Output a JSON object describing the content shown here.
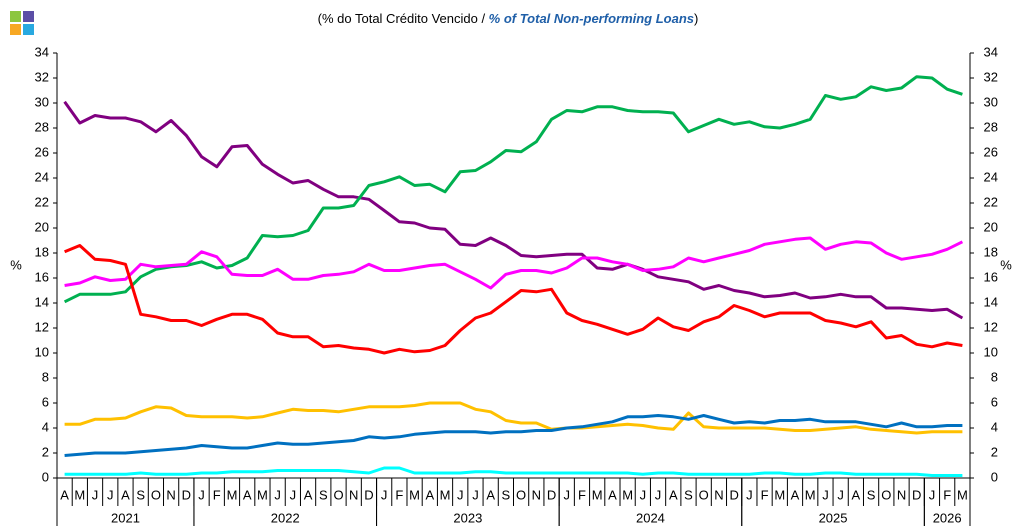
{
  "chart_data": {
    "type": "line",
    "title": [
      "(% do Total Crédito Vencido / ",
      "% of Total Non-performing Loans",
      ")"
    ],
    "ylabel": "%",
    "y2label": "%",
    "categories": [
      "A",
      "M",
      "J",
      "J",
      "A",
      "S",
      "O",
      "N",
      "D",
      "J",
      "F",
      "M",
      "A",
      "M",
      "J",
      "J",
      "A",
      "S",
      "O",
      "N",
      "D",
      "J",
      "F",
      "M",
      "A",
      "M",
      "J",
      "J",
      "A",
      "S",
      "O",
      "N",
      "D",
      "J",
      "F",
      "M",
      "A",
      "M",
      "J",
      "J",
      "A",
      "S",
      "O",
      "N",
      "D",
      "J",
      "F",
      "M",
      "A",
      "M",
      "J",
      "J",
      "A",
      "S",
      "O",
      "N",
      "D",
      "J",
      "F",
      "M"
    ],
    "year_groups": [
      {
        "label": "2021",
        "months": 9
      },
      {
        "label": "2022",
        "months": 12
      },
      {
        "label": "2023",
        "months": 12
      },
      {
        "label": "2024",
        "months": 12
      },
      {
        "label": "2025",
        "months": 12
      },
      {
        "label": "2026",
        "months": 3
      }
    ],
    "ylim": [
      0,
      34
    ],
    "yticks": [
      0,
      2,
      4,
      6,
      8,
      10,
      12,
      14,
      16,
      18,
      20,
      22,
      24,
      26,
      28,
      30,
      32,
      34
    ],
    "y2lim": [
      0,
      34
    ],
    "y2ticks": [
      0,
      2,
      4,
      6,
      8,
      10,
      12,
      14,
      16,
      18,
      20,
      22,
      24,
      26,
      28,
      30,
      32,
      34
    ],
    "series": [
      {
        "color": "#800080",
        "values": [
          30.1,
          28.4,
          29.0,
          28.8,
          28.8,
          28.5,
          27.7,
          28.6,
          27.4,
          25.7,
          24.9,
          26.5,
          26.6,
          25.1,
          24.3,
          23.6,
          23.8,
          23.1,
          22.5,
          22.5,
          22.3,
          21.4,
          20.5,
          20.4,
          20.0,
          19.9,
          18.7,
          18.6,
          19.2,
          18.6,
          17.8,
          17.7,
          17.8,
          17.9,
          17.9,
          16.8,
          16.7,
          17.1,
          16.7,
          16.1,
          15.9,
          15.7,
          15.1,
          15.4,
          15.0,
          14.8,
          14.5,
          14.6,
          14.8,
          14.4,
          14.5,
          14.7,
          14.5,
          14.5,
          13.6,
          13.6,
          13.5,
          13.4,
          13.5,
          12.8
        ]
      },
      {
        "color": "#00b050",
        "values": [
          14.1,
          14.7,
          14.7,
          14.7,
          14.9,
          16.1,
          16.7,
          16.9,
          17.0,
          17.3,
          16.8,
          17.0,
          17.6,
          19.4,
          19.3,
          19.4,
          19.8,
          21.6,
          21.6,
          21.8,
          23.4,
          23.7,
          24.1,
          23.4,
          23.5,
          22.9,
          24.5,
          24.6,
          25.3,
          26.2,
          26.1,
          26.9,
          28.7,
          29.4,
          29.3,
          29.7,
          29.7,
          29.4,
          29.3,
          29.3,
          29.2,
          27.7,
          28.2,
          28.7,
          28.3,
          28.5,
          28.1,
          28.0,
          28.3,
          28.7,
          30.6,
          30.3,
          30.5,
          31.3,
          31.0,
          31.2,
          32.1,
          32.0,
          31.1,
          30.7
        ]
      },
      {
        "color": "#ff00ff",
        "values": [
          15.4,
          15.6,
          16.1,
          15.8,
          15.9,
          17.1,
          16.9,
          17.0,
          17.1,
          18.1,
          17.7,
          16.3,
          16.2,
          16.2,
          16.7,
          15.9,
          15.9,
          16.2,
          16.3,
          16.5,
          17.1,
          16.6,
          16.6,
          16.8,
          17.0,
          17.1,
          16.5,
          15.9,
          15.2,
          16.3,
          16.6,
          16.6,
          16.4,
          16.8,
          17.6,
          17.6,
          17.3,
          17.1,
          16.6,
          16.7,
          16.9,
          17.6,
          17.3,
          17.6,
          17.9,
          18.2,
          18.7,
          18.9,
          19.1,
          19.2,
          18.3,
          18.7,
          18.9,
          18.8,
          18.0,
          17.5,
          17.7,
          17.9,
          18.3,
          18.9
        ]
      },
      {
        "color": "#ff0000",
        "values": [
          18.1,
          18.6,
          17.5,
          17.4,
          17.1,
          13.1,
          12.9,
          12.6,
          12.6,
          12.2,
          12.7,
          13.1,
          13.1,
          12.7,
          11.6,
          11.3,
          11.3,
          10.5,
          10.6,
          10.4,
          10.3,
          10.0,
          10.3,
          10.1,
          10.2,
          10.6,
          11.8,
          12.8,
          13.2,
          14.1,
          15.0,
          14.9,
          15.1,
          13.2,
          12.6,
          12.3,
          11.9,
          11.5,
          11.9,
          12.8,
          12.1,
          11.8,
          12.5,
          12.9,
          13.8,
          13.4,
          12.9,
          13.2,
          13.2,
          13.2,
          12.6,
          12.4,
          12.1,
          12.5,
          11.2,
          11.4,
          10.7,
          10.5,
          10.8,
          10.6
        ]
      },
      {
        "color": "#ffc000",
        "values": [
          4.3,
          4.3,
          4.7,
          4.7,
          4.8,
          5.3,
          5.7,
          5.6,
          5.0,
          4.9,
          4.9,
          4.9,
          4.8,
          4.9,
          5.2,
          5.5,
          5.4,
          5.4,
          5.3,
          5.5,
          5.7,
          5.7,
          5.7,
          5.8,
          6.0,
          6.0,
          6.0,
          5.5,
          5.3,
          4.6,
          4.4,
          4.4,
          3.9,
          4.0,
          4.0,
          4.1,
          4.2,
          4.3,
          4.2,
          4.0,
          3.9,
          5.2,
          4.1,
          4.0,
          4.0,
          4.0,
          4.0,
          3.9,
          3.8,
          3.8,
          3.9,
          4.0,
          4.1,
          3.9,
          3.8,
          3.7,
          3.6,
          3.7,
          3.7,
          3.7
        ]
      },
      {
        "color": "#0070c0",
        "values": [
          1.8,
          1.9,
          2.0,
          2.0,
          2.0,
          2.1,
          2.2,
          2.3,
          2.4,
          2.6,
          2.5,
          2.4,
          2.4,
          2.6,
          2.8,
          2.7,
          2.7,
          2.8,
          2.9,
          3.0,
          3.3,
          3.2,
          3.3,
          3.5,
          3.6,
          3.7,
          3.7,
          3.7,
          3.6,
          3.7,
          3.7,
          3.8,
          3.8,
          4.0,
          4.1,
          4.3,
          4.5,
          4.9,
          4.9,
          5.0,
          4.9,
          4.7,
          5.0,
          4.7,
          4.4,
          4.5,
          4.4,
          4.6,
          4.6,
          4.7,
          4.5,
          4.5,
          4.5,
          4.3,
          4.1,
          4.4,
          4.1,
          4.1,
          4.2,
          4.2
        ]
      },
      {
        "color": "#00ffff",
        "values": [
          0.3,
          0.3,
          0.3,
          0.3,
          0.3,
          0.4,
          0.3,
          0.3,
          0.3,
          0.4,
          0.4,
          0.5,
          0.5,
          0.5,
          0.6,
          0.6,
          0.6,
          0.6,
          0.6,
          0.5,
          0.4,
          0.8,
          0.8,
          0.4,
          0.4,
          0.4,
          0.4,
          0.5,
          0.5,
          0.4,
          0.4,
          0.4,
          0.4,
          0.4,
          0.4,
          0.4,
          0.4,
          0.4,
          0.3,
          0.4,
          0.4,
          0.3,
          0.3,
          0.3,
          0.3,
          0.3,
          0.4,
          0.4,
          0.3,
          0.3,
          0.4,
          0.4,
          0.3,
          0.3,
          0.3,
          0.3,
          0.3,
          0.2,
          0.2,
          0.2
        ]
      }
    ]
  }
}
